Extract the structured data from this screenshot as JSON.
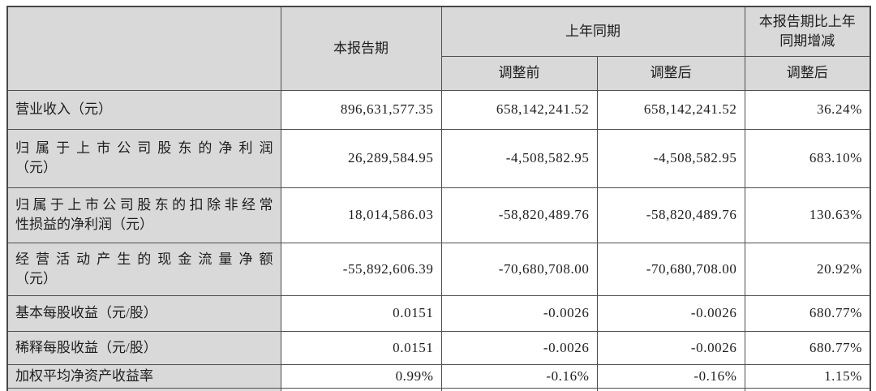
{
  "colors": {
    "header_bg": "#d9d9d9",
    "grid_border": "#4e4e4e",
    "text": "#1d1d1d",
    "page_bg": "#ffffff"
  },
  "table": {
    "header": {
      "current_period": "本报告期",
      "prior_period_group": "上年同期",
      "prior_before_adjust": "调整前",
      "prior_after_adjust": "调整后",
      "change_vs_prior": "本报告期比上年同期增减",
      "change_sub": "调整后"
    },
    "rows": [
      {
        "label": {
          "spread": "",
          "rest": "营业收入（元）"
        },
        "current": "896,631,577.35",
        "prior_before": "658,142,241.52",
        "prior_after": "658,142,241.52",
        "change": "36.24%"
      },
      {
        "label": {
          "spread": "归属于上市公司股东的净利润",
          "rest": "（元）"
        },
        "current": "26,289,584.95",
        "prior_before": "-4,508,582.95",
        "prior_after": "-4,508,582.95",
        "change": "683.10%"
      },
      {
        "label": {
          "spread": "归属于上市公司股东的扣除非经常",
          "rest": "性损益的净利润（元）"
        },
        "current": "18,014,586.03",
        "prior_before": "-58,820,489.76",
        "prior_after": "-58,820,489.76",
        "change": "130.63%"
      },
      {
        "label": {
          "spread": "经营活动产生的现金流量净额",
          "rest": "（元）"
        },
        "current": "-55,892,606.39",
        "prior_before": "-70,680,708.00",
        "prior_after": "-70,680,708.00",
        "change": "20.92%"
      },
      {
        "label": {
          "spread": "",
          "rest": "基本每股收益（元/股）"
        },
        "current": "0.0151",
        "prior_before": "-0.0026",
        "prior_after": "-0.0026",
        "change": "680.77%"
      },
      {
        "label": {
          "spread": "",
          "rest": "稀释每股收益（元/股）"
        },
        "current": "0.0151",
        "prior_before": "-0.0026",
        "prior_after": "-0.0026",
        "change": "680.77%"
      },
      {
        "label": {
          "spread": "",
          "rest": "加权平均净资产收益率"
        },
        "current": "0.99%",
        "prior_before": "-0.16%",
        "prior_after": "-0.16%",
        "change": "1.15%"
      }
    ]
  }
}
